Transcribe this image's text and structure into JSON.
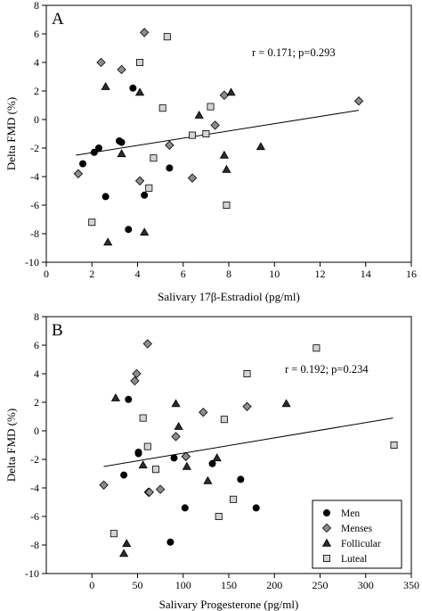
{
  "legend": {
    "items": [
      {
        "label": "Men",
        "marker": "circle",
        "fill": "#000000"
      },
      {
        "label": "Menses",
        "marker": "diamond",
        "fill": "#8c8c8c"
      },
      {
        "label": "Follicular",
        "marker": "triangle",
        "fill": "#2b2b2b"
      },
      {
        "label": "Luteal",
        "marker": "square",
        "fill": "#d4d4d4"
      }
    ]
  },
  "chart_data": [
    {
      "type": "scatter",
      "panel_label": "A",
      "title": "",
      "xlabel": "Salivary 17β-Estradiol (pg/ml)",
      "ylabel": "Delta FMD (%)",
      "xlim": [
        0,
        16
      ],
      "ylim": [
        -10,
        8
      ],
      "x_ticks": [
        0,
        2,
        4,
        6,
        8,
        10,
        12,
        14,
        16
      ],
      "y_ticks": [
        -10,
        -8,
        -6,
        -4,
        -2,
        0,
        2,
        4,
        6,
        8
      ],
      "annotation": "r = 0.171; p=0.293",
      "regression_line": {
        "x": [
          1.3,
          13.7
        ],
        "y": [
          -2.5,
          0.65
        ]
      },
      "series": [
        {
          "name": "Men",
          "marker": "circle",
          "x": [
            1.6,
            2.1,
            2.3,
            2.6,
            3.2,
            3.3,
            3.6,
            3.8,
            4.3,
            5.4
          ],
          "y": [
            -3.1,
            -2.3,
            -2.0,
            -5.4,
            -1.5,
            -1.6,
            -7.7,
            2.2,
            -5.3,
            -3.4
          ]
        },
        {
          "name": "Menses",
          "marker": "diamond",
          "x": [
            1.4,
            2.4,
            3.3,
            4.1,
            4.3,
            5.4,
            6.4,
            7.4,
            7.8,
            13.7
          ],
          "y": [
            -3.8,
            4.0,
            3.5,
            -4.3,
            6.1,
            -1.8,
            -4.1,
            -0.4,
            1.7,
            1.3
          ],
          "labels": []
        },
        {
          "name": "Follicular",
          "marker": "triangle",
          "x": [
            2.6,
            2.7,
            3.3,
            4.1,
            4.3,
            6.7,
            7.8,
            7.9,
            8.1,
            9.4
          ],
          "y": [
            2.3,
            -8.6,
            -2.4,
            1.9,
            -7.9,
            0.3,
            -2.5,
            -3.5,
            1.9,
            -1.9
          ]
        },
        {
          "name": "Luteal",
          "marker": "square",
          "x": [
            2.0,
            4.1,
            4.5,
            4.7,
            5.1,
            5.3,
            6.4,
            7.0,
            7.2,
            7.9
          ],
          "y": [
            -7.2,
            4.0,
            -4.8,
            -2.7,
            0.8,
            5.8,
            -1.1,
            -1.0,
            0.9,
            -6.0
          ]
        }
      ]
    },
    {
      "type": "scatter",
      "panel_label": "B",
      "title": "",
      "xlabel": "Salivary Progesterone (pg/ml)",
      "ylabel": "Delta FMD (%)",
      "xlim": [
        -50,
        350
      ],
      "ylim": [
        -10,
        8
      ],
      "x_ticks": [
        0,
        50,
        100,
        150,
        200,
        250,
        300,
        350
      ],
      "y_ticks": [
        -10,
        -8,
        -6,
        -4,
        -2,
        0,
        2,
        4,
        6,
        8
      ],
      "annotation": "r = 0.192; p=0.234",
      "regression_line": {
        "x": [
          13,
          330
        ],
        "y": [
          -2.5,
          0.9
        ]
      },
      "series": [
        {
          "name": "Men",
          "marker": "circle",
          "x": [
            35,
            40,
            51,
            51,
            90,
            102,
            132,
            86,
            163,
            180
          ],
          "y": [
            -3.1,
            2.2,
            -1.5,
            -1.6,
            -1.9,
            -5.4,
            -2.3,
            -7.8,
            -3.4,
            -5.4
          ]
        },
        {
          "name": "Menses",
          "marker": "diamond",
          "x": [
            13,
            47,
            49,
            61,
            62,
            63,
            75,
            92,
            103,
            122,
            170,
            103
          ],
          "y": [
            -3.8,
            3.5,
            4.0,
            6.1,
            -4.3,
            -4.3,
            -4.1,
            -0.4,
            -1.8,
            1.3,
            1.7,
            -1.8
          ]
        },
        {
          "name": "Follicular",
          "marker": "triangle",
          "x": [
            26,
            35,
            38,
            56,
            92,
            95,
            104,
            127,
            137,
            213
          ],
          "y": [
            2.3,
            -8.6,
            -7.9,
            -2.4,
            1.9,
            0.3,
            -2.5,
            -3.5,
            -1.9,
            1.9
          ]
        },
        {
          "name": "Luteal",
          "marker": "square",
          "x": [
            24,
            56,
            61,
            70,
            145,
            155,
            139,
            170,
            246,
            331
          ],
          "y": [
            -7.2,
            0.9,
            -1.1,
            -2.7,
            0.8,
            -4.8,
            -6.0,
            4.0,
            5.8,
            -1.0
          ]
        }
      ]
    }
  ]
}
